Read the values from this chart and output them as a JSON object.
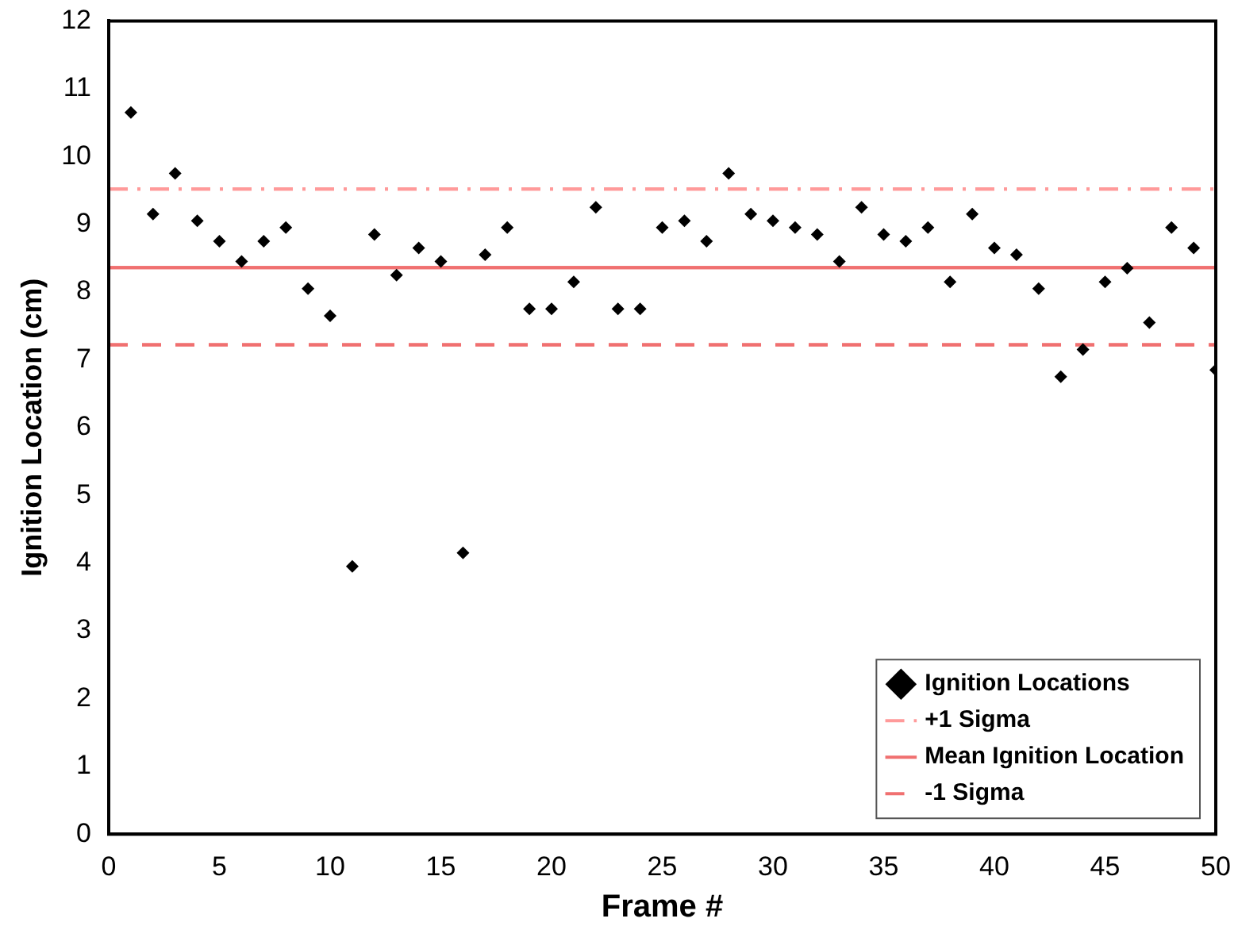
{
  "chart_data": {
    "type": "scatter",
    "xlabel": "Frame #",
    "ylabel": "Ignition Location (cm)",
    "x": [
      1,
      2,
      3,
      4,
      5,
      6,
      7,
      8,
      9,
      10,
      11,
      12,
      13,
      14,
      15,
      16,
      17,
      18,
      19,
      20,
      21,
      22,
      23,
      24,
      25,
      26,
      27,
      28,
      29,
      30,
      31,
      32,
      33,
      34,
      35,
      36,
      37,
      38,
      39,
      40,
      41,
      42,
      43,
      44,
      45,
      46,
      47,
      48,
      49,
      50
    ],
    "series": [
      {
        "name": "Ignition Locations",
        "color": "#000000",
        "values": [
          10.65,
          9.15,
          9.75,
          9.05,
          8.75,
          8.45,
          8.75,
          8.95,
          8.05,
          7.65,
          3.95,
          8.85,
          8.25,
          8.65,
          8.45,
          4.15,
          8.55,
          8.95,
          7.75,
          7.75,
          8.15,
          9.25,
          7.75,
          7.75,
          8.95,
          9.05,
          8.75,
          9.75,
          9.15,
          9.05,
          8.95,
          8.85,
          8.45,
          9.25,
          8.85,
          8.75,
          8.95,
          8.15,
          9.15,
          8.65,
          8.55,
          8.05,
          6.75,
          7.15,
          8.15,
          8.35,
          7.55,
          8.95,
          8.65,
          6.85
        ]
      }
    ],
    "marker": "diamond",
    "ref_lines": [
      {
        "axis": "y",
        "value": 9.52,
        "label": "+1 Sigma",
        "color": "#ff9a9a",
        "line_style": "dashdot"
      },
      {
        "axis": "y",
        "value": 8.36,
        "label": "Mean Ignition Location",
        "color": "#f07070",
        "line_style": "solid"
      },
      {
        "axis": "y",
        "value": 7.22,
        "label": "-1 Sigma",
        "color": "#f07070",
        "line_style": "dashed"
      }
    ],
    "xlim": [
      0,
      50
    ],
    "xticks": [
      0,
      5,
      10,
      15,
      20,
      25,
      30,
      35,
      40,
      45,
      50
    ],
    "ylim": [
      0,
      12
    ],
    "yticks": [
      0,
      1,
      2,
      3,
      4,
      5,
      6,
      7,
      8,
      9,
      10,
      11,
      12
    ],
    "grid": false,
    "legend": "bottom right"
  }
}
